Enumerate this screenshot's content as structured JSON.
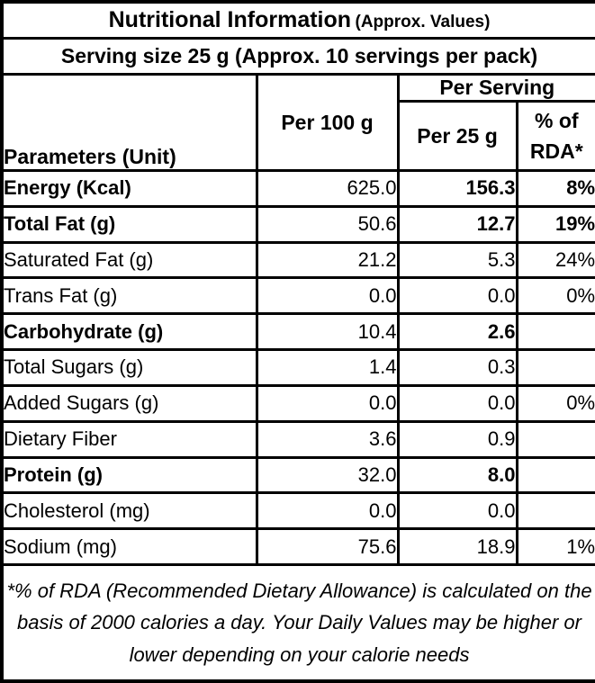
{
  "header": {
    "title": "Nutritional Information",
    "title_note": "(Approx. Values)",
    "serving_line": "Serving size 25 g (Approx. 10 servings per pack)"
  },
  "columns": {
    "parameters": "Parameters (Unit)",
    "per_100g": "Per 100 g",
    "per_serving": "Per Serving",
    "per_25g": "Per 25 g",
    "rda_line1": "% of",
    "rda_line2": "RDA*"
  },
  "rows": [
    {
      "label": "Energy (Kcal)",
      "per_100g": "625.0",
      "per_25g": "156.3",
      "rda": "8%",
      "bold": true
    },
    {
      "label": "Total Fat (g)",
      "per_100g": "50.6",
      "per_25g": "12.7",
      "rda": "19%",
      "bold": true
    },
    {
      "label": "Saturated Fat (g)",
      "per_100g": "21.2",
      "per_25g": "5.3",
      "rda": "24%",
      "bold": false
    },
    {
      "label": "Trans Fat (g)",
      "per_100g": "0.0",
      "per_25g": "0.0",
      "rda": "0%",
      "bold": false
    },
    {
      "label": "Carbohydrate (g)",
      "per_100g": "10.4",
      "per_25g": "2.6",
      "rda": "",
      "bold": true
    },
    {
      "label": "Total Sugars (g)",
      "per_100g": "1.4",
      "per_25g": "0.3",
      "rda": "",
      "bold": false
    },
    {
      "label": "Added Sugars (g)",
      "per_100g": "0.0",
      "per_25g": "0.0",
      "rda": "0%",
      "bold": false
    },
    {
      "label": "Dietary Fiber",
      "per_100g": "3.6",
      "per_25g": "0.9",
      "rda": "",
      "bold": false
    },
    {
      "label": "Protein (g)",
      "per_100g": "32.0",
      "per_25g": "8.0",
      "rda": "",
      "bold": true
    },
    {
      "label": "Cholesterol (mg)",
      "per_100g": "0.0",
      "per_25g": "0.0",
      "rda": "",
      "bold": false
    },
    {
      "label": "Sodium (mg)",
      "per_100g": "75.6",
      "per_25g": "18.9",
      "rda": "1%",
      "bold": false
    }
  ],
  "footnote": "*% of RDA (Recommended Dietary Allowance) is calculated on the basis of 2000 calories a day. Your Daily Values may be higher or lower depending on your calorie needs",
  "colors": {
    "text": "#000000",
    "background": "#ffffff",
    "border": "#000000"
  }
}
